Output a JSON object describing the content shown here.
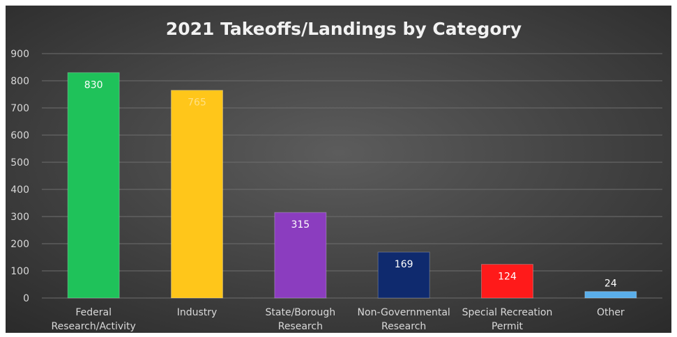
{
  "chart_data": {
    "type": "bar",
    "title": "2021 Takeoffs/Landings by Category",
    "xlabel": "",
    "ylabel": "",
    "ylim": [
      0,
      900
    ],
    "yticks": [
      0,
      100,
      200,
      300,
      400,
      500,
      600,
      700,
      800,
      900
    ],
    "grid": true,
    "legend": "none",
    "categories": [
      [
        "Federal",
        "Research/Activity"
      ],
      [
        "Industry"
      ],
      [
        "State/Borough",
        "Research"
      ],
      [
        "Non-Governmental",
        "Research"
      ],
      [
        "Special Recreation",
        "Permit"
      ],
      [
        "Other"
      ]
    ],
    "values": [
      830,
      765,
      315,
      169,
      124,
      24
    ],
    "data_labels": [
      "830",
      "765",
      "315",
      "169",
      "124",
      "24"
    ],
    "bar_colors": [
      "#1fc25a",
      "#ffc61a",
      "#8b3dbf",
      "#0f2a6e",
      "#ff1a1a",
      "#5aaeea"
    ],
    "label_colors": [
      "#ffffff",
      "#ffe083",
      "#ffffff",
      "#ffffff",
      "#ffffff",
      "#ffffff"
    ],
    "label_positions": [
      "inside",
      "inside",
      "inside",
      "inside",
      "inside",
      "above"
    ]
  },
  "colors": {
    "background_center": "#5c5c5c",
    "background_edge": "#2a2a2a",
    "gridline": "#6e6e6e",
    "text": "#d9d9d9",
    "title": "#f2f2f2"
  }
}
